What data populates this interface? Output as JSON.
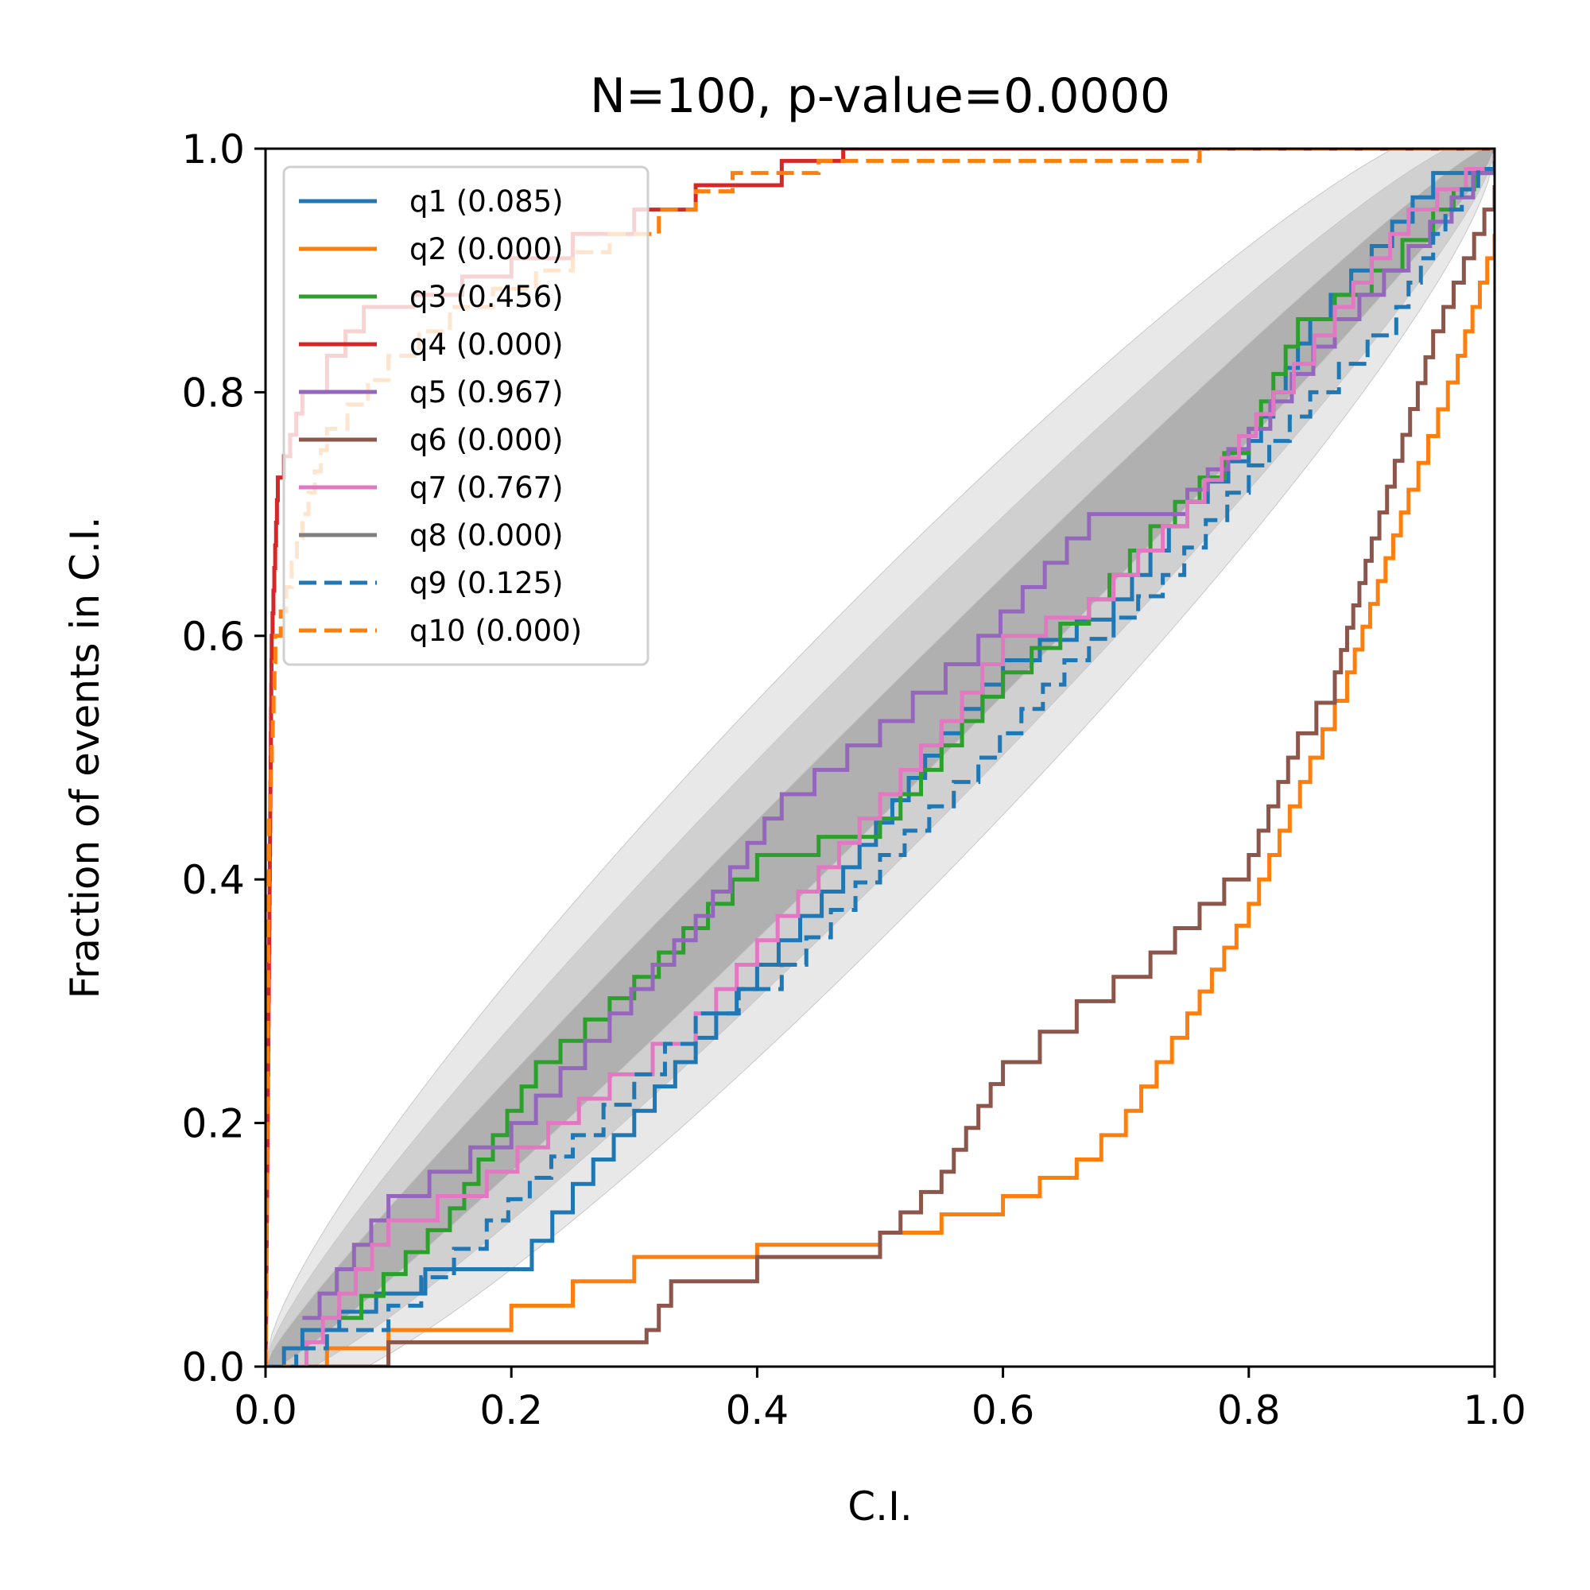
{
  "chart_data": {
    "type": "line",
    "title": "N=100, p-value=0.0000",
    "xlabel": "C.I.",
    "ylabel": "Fraction of events in C.I.",
    "xlim": [
      0,
      1
    ],
    "ylim": [
      0,
      1
    ],
    "xticks": [
      "0.0",
      "0.2",
      "0.4",
      "0.6",
      "0.8",
      "1.0"
    ],
    "yticks": [
      "0.0",
      "0.2",
      "0.4",
      "0.6",
      "0.8",
      "1.0"
    ],
    "legend_position": "upper-left",
    "confidence_bands": [
      {
        "level": "1-sigma",
        "half_width_scale": 1.0,
        "color": "#b0b0b0"
      },
      {
        "level": "2-sigma",
        "half_width_scale": 2.0,
        "color": "#d0d0d0"
      },
      {
        "level": "3-sigma",
        "half_width_scale": 3.0,
        "color": "#e8e8e8"
      }
    ],
    "series": [
      {
        "name": "q1 (0.085)",
        "color": "#1f77b4",
        "dash": "solid",
        "points": [
          [
            0,
            0
          ],
          [
            0.03,
            0.03
          ],
          [
            0.09,
            0.06
          ],
          [
            0.13,
            0.08
          ],
          [
            0.2,
            0.08
          ],
          [
            0.25,
            0.15
          ],
          [
            0.3,
            0.21
          ],
          [
            0.35,
            0.27
          ],
          [
            0.4,
            0.33
          ],
          [
            0.47,
            0.41
          ],
          [
            0.55,
            0.52
          ],
          [
            0.6,
            0.58
          ],
          [
            0.69,
            0.63
          ],
          [
            0.75,
            0.71
          ],
          [
            0.8,
            0.76
          ],
          [
            0.85,
            0.86
          ],
          [
            0.9,
            0.92
          ],
          [
            0.95,
            0.98
          ],
          [
            1,
            1
          ]
        ]
      },
      {
        "name": "q2 (0.000)",
        "color": "#ff7f0e",
        "dash": "solid",
        "points": [
          [
            0,
            0
          ],
          [
            0.1,
            0.03
          ],
          [
            0.2,
            0.05
          ],
          [
            0.3,
            0.09
          ],
          [
            0.4,
            0.1
          ],
          [
            0.5,
            0.11
          ],
          [
            0.6,
            0.14
          ],
          [
            0.66,
            0.17
          ],
          [
            0.7,
            0.21
          ],
          [
            0.75,
            0.29
          ],
          [
            0.8,
            0.38
          ],
          [
            0.85,
            0.5
          ],
          [
            0.88,
            0.57
          ],
          [
            0.93,
            0.72
          ],
          [
            0.97,
            0.83
          ],
          [
            1,
            0.93
          ]
        ]
      },
      {
        "name": "q3 (0.456)",
        "color": "#2ca02c",
        "dash": "solid",
        "points": [
          [
            0.06,
            0.04
          ],
          [
            0.15,
            0.13
          ],
          [
            0.22,
            0.25
          ],
          [
            0.3,
            0.32
          ],
          [
            0.4,
            0.42
          ],
          [
            0.5,
            0.45
          ],
          [
            0.6,
            0.57
          ],
          [
            0.67,
            0.63
          ],
          [
            0.72,
            0.69
          ],
          [
            0.8,
            0.77
          ],
          [
            0.84,
            0.86
          ],
          [
            0.9,
            0.9
          ],
          [
            0.95,
            0.95
          ],
          [
            1,
            1
          ]
        ]
      },
      {
        "name": "q4 (0.000)",
        "color": "#d62728",
        "dash": "solid",
        "points": [
          [
            0,
            0
          ],
          [
            0.005,
            0.6
          ],
          [
            0.01,
            0.73
          ],
          [
            0.03,
            0.8
          ],
          [
            0.05,
            0.83
          ],
          [
            0.08,
            0.87
          ],
          [
            0.12,
            0.88
          ],
          [
            0.2,
            0.91
          ],
          [
            0.3,
            0.95
          ],
          [
            0.35,
            0.97
          ],
          [
            0.42,
            0.99
          ],
          [
            0.47,
            1.0
          ],
          [
            1,
            1
          ]
        ]
      },
      {
        "name": "q5 (0.967)",
        "color": "#9467bd",
        "dash": "solid",
        "points": [
          [
            0.03,
            0.04
          ],
          [
            0.1,
            0.14
          ],
          [
            0.2,
            0.2
          ],
          [
            0.28,
            0.29
          ],
          [
            0.35,
            0.37
          ],
          [
            0.42,
            0.47
          ],
          [
            0.5,
            0.53
          ],
          [
            0.58,
            0.6
          ],
          [
            0.67,
            0.7
          ],
          [
            0.75,
            0.72
          ],
          [
            0.8,
            0.77
          ],
          [
            0.87,
            0.86
          ],
          [
            0.93,
            0.92
          ],
          [
            1,
            1
          ]
        ]
      },
      {
        "name": "q6 (0.000)",
        "color": "#8c564b",
        "dash": "solid",
        "points": [
          [
            0.03,
            0
          ],
          [
            0.1,
            0.02
          ],
          [
            0.2,
            0.02
          ],
          [
            0.31,
            0.03
          ],
          [
            0.33,
            0.07
          ],
          [
            0.4,
            0.09
          ],
          [
            0.5,
            0.11
          ],
          [
            0.55,
            0.16
          ],
          [
            0.6,
            0.25
          ],
          [
            0.66,
            0.3
          ],
          [
            0.72,
            0.34
          ],
          [
            0.8,
            0.42
          ],
          [
            0.84,
            0.52
          ],
          [
            0.87,
            0.57
          ],
          [
            0.9,
            0.68
          ],
          [
            0.95,
            0.85
          ],
          [
            1,
            0.97
          ]
        ]
      },
      {
        "name": "q7 (0.767)",
        "color": "#e377c2",
        "dash": "solid",
        "points": [
          [
            0.02,
            0
          ],
          [
            0.1,
            0.12
          ],
          [
            0.18,
            0.16
          ],
          [
            0.28,
            0.24
          ],
          [
            0.35,
            0.29
          ],
          [
            0.45,
            0.41
          ],
          [
            0.55,
            0.53
          ],
          [
            0.6,
            0.6
          ],
          [
            0.67,
            0.63
          ],
          [
            0.75,
            0.71
          ],
          [
            0.82,
            0.8
          ],
          [
            0.87,
            0.87
          ],
          [
            0.93,
            0.95
          ],
          [
            1,
            1
          ]
        ]
      },
      {
        "name": "q8 (0.000)",
        "color": "#7f7f7f",
        "dash": "solid",
        "points": []
      },
      {
        "name": "q9 (0.125)",
        "color": "#1f77b4",
        "dash": "dashed",
        "points": [
          [
            0,
            0
          ],
          [
            0.05,
            0.03
          ],
          [
            0.1,
            0.05
          ],
          [
            0.18,
            0.12
          ],
          [
            0.25,
            0.19
          ],
          [
            0.3,
            0.24
          ],
          [
            0.35,
            0.29
          ],
          [
            0.42,
            0.33
          ],
          [
            0.5,
            0.42
          ],
          [
            0.58,
            0.5
          ],
          [
            0.65,
            0.58
          ],
          [
            0.73,
            0.65
          ],
          [
            0.8,
            0.74
          ],
          [
            0.85,
            0.8
          ],
          [
            0.92,
            0.87
          ],
          [
            0.96,
            0.95
          ],
          [
            1,
            1
          ]
        ]
      },
      {
        "name": "q10 (0.000)",
        "color": "#ff7f0e",
        "dash": "dashed",
        "points": [
          [
            0,
            0
          ],
          [
            0.003,
            0.45
          ],
          [
            0.008,
            0.6
          ],
          [
            0.03,
            0.7
          ],
          [
            0.05,
            0.77
          ],
          [
            0.1,
            0.83
          ],
          [
            0.15,
            0.87
          ],
          [
            0.22,
            0.9
          ],
          [
            0.28,
            0.93
          ],
          [
            0.32,
            0.95
          ],
          [
            0.38,
            0.98
          ],
          [
            0.45,
            0.99
          ],
          [
            0.6,
            0.99
          ],
          [
            0.75,
            0.99
          ],
          [
            0.76,
            1.0
          ],
          [
            1,
            1
          ]
        ]
      }
    ]
  }
}
